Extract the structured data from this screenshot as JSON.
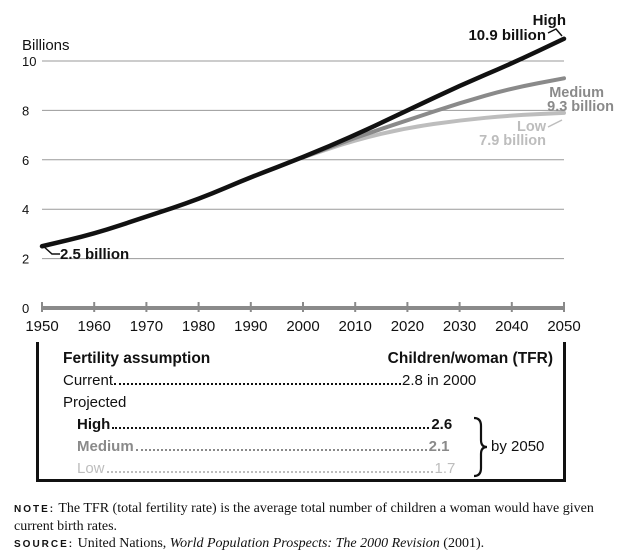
{
  "chart_data": {
    "type": "line",
    "ylabel": "Billions",
    "x": [
      1950,
      1960,
      1970,
      1980,
      1990,
      2000,
      2010,
      2020,
      2030,
      2040,
      2050
    ],
    "xlim": [
      1950,
      2050
    ],
    "ylim": [
      0,
      10
    ],
    "yticks": [
      0,
      2,
      4,
      6,
      8,
      10
    ],
    "grid": true,
    "series": [
      {
        "name": "High",
        "color": "#111111",
        "x": [
          1950,
          1960,
          1970,
          1980,
          1990,
          2000,
          2010,
          2020,
          2030,
          2040,
          2050
        ],
        "values": [
          2.5,
          3.0,
          3.7,
          4.4,
          5.3,
          6.1,
          7.0,
          8.0,
          9.0,
          9.9,
          10.9
        ]
      },
      {
        "name": "Medium",
        "color": "#8a8a8a",
        "x": [
          2000,
          2010,
          2020,
          2030,
          2040,
          2050
        ],
        "values": [
          6.1,
          6.9,
          7.6,
          8.3,
          8.9,
          9.3
        ]
      },
      {
        "name": "Low",
        "color": "#bdbdbd",
        "x": [
          2000,
          2010,
          2020,
          2030,
          2040,
          2050
        ],
        "values": [
          6.1,
          6.8,
          7.3,
          7.6,
          7.8,
          7.9
        ]
      }
    ],
    "annotations": {
      "high_name": "High",
      "high_value": "10.9 billion",
      "medium_name": "Medium",
      "medium_value": "9.3 billion",
      "low_name": "Low",
      "low_value": "7.9 billion",
      "start_value": "2.5 billion"
    }
  },
  "table": {
    "col1_header": "Fertility assumption",
    "col2_header": "Children/woman (TFR)",
    "current_label": "Current",
    "current_value": "2.8 in 2000",
    "projected_label": "Projected",
    "rows": [
      {
        "label": "High",
        "value": "2.6",
        "color": "#111111"
      },
      {
        "label": "Medium",
        "value": "2.1",
        "color": "#8a8a8a"
      },
      {
        "label": "Low",
        "value": "1.7",
        "color": "#bdbdbd"
      }
    ],
    "brace_label": "by 2050"
  },
  "note": {
    "label": "NOTE:",
    "text": "The TFR (total fertility rate) is the average total number of children a woman would have given current birth rates."
  },
  "source": {
    "label": "SOURCE:",
    "text_plain": "United Nations,",
    "text_italic": "World Population Prospects: The 2000 Revision",
    "text_end": "(2001)."
  }
}
